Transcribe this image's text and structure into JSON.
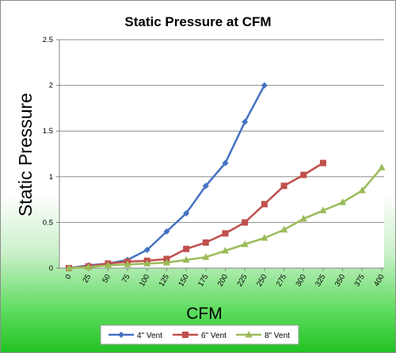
{
  "chart_data": {
    "type": "line",
    "title": "Static Pressure at CFM",
    "xlabel": "CFM",
    "ylabel": "Static Pressure",
    "ylim": [
      0,
      2.5
    ],
    "yticks": [
      "0",
      "0.5",
      "1",
      "1.5",
      "2",
      "2.5"
    ],
    "xticks": [
      "0",
      "25",
      "50",
      "75",
      "100",
      "125",
      "150",
      "175",
      "200",
      "225",
      "250",
      "275",
      "300",
      "325",
      "350",
      "375",
      "400"
    ],
    "grid": "horizontal",
    "legend_position": "bottom",
    "series": [
      {
        "name": "4\" Vent",
        "color": "#4472c4",
        "marker": "diamond",
        "x": [
          0,
          25,
          50,
          75,
          100,
          125,
          150,
          175,
          200,
          225,
          250
        ],
        "y": [
          0.0,
          0.03,
          0.05,
          0.09,
          0.2,
          0.4,
          0.6,
          0.9,
          1.15,
          1.6,
          2.0
        ]
      },
      {
        "name": "6\" Vent",
        "color": "#c0504d",
        "marker": "square",
        "x": [
          0,
          25,
          50,
          75,
          100,
          125,
          150,
          175,
          200,
          225,
          250,
          275,
          300,
          325
        ],
        "y": [
          0.0,
          0.02,
          0.05,
          0.07,
          0.08,
          0.1,
          0.21,
          0.28,
          0.38,
          0.5,
          0.7,
          0.9,
          1.02,
          1.15
        ]
      },
      {
        "name": "8\" Vent",
        "color": "#9bbb59",
        "marker": "triangle",
        "x": [
          0,
          25,
          50,
          75,
          100,
          125,
          150,
          175,
          200,
          225,
          250,
          275,
          300,
          325,
          350,
          375,
          400
        ],
        "y": [
          0.0,
          0.01,
          0.03,
          0.04,
          0.05,
          0.06,
          0.09,
          0.12,
          0.19,
          0.26,
          0.33,
          0.42,
          0.54,
          0.63,
          0.72,
          0.85,
          1.1
        ]
      }
    ]
  }
}
